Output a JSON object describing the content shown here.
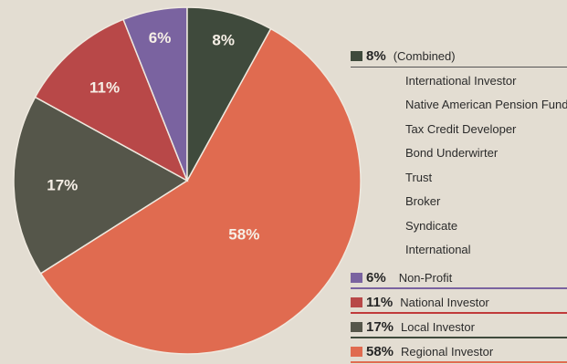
{
  "chart_data": {
    "type": "pie",
    "slices": [
      {
        "label": "Regional Investor",
        "value": 58,
        "display": "58%",
        "color": "#e06b50"
      },
      {
        "label": "Local Investor",
        "value": 17,
        "display": "17%",
        "color": "#55564a"
      },
      {
        "label": "National Investor",
        "value": 11,
        "display": "11%",
        "color": "#b84848"
      },
      {
        "label": "Non-Profit",
        "value": 6,
        "display": "6%",
        "color": "#7a63a0"
      },
      {
        "label": "(Combined)",
        "value": 8,
        "display": "8%",
        "color": "#3f4a3c"
      }
    ]
  },
  "legend": {
    "combined": {
      "pct": "8%",
      "label": "(Combined)",
      "color": "#3f4a3c"
    },
    "combined_items": [
      "International Investor",
      "Native American Pension Fund",
      "Tax Credit Developer",
      "Bond Underwirter",
      "Trust",
      "Broker",
      "Syndicate",
      "International"
    ],
    "entries": [
      {
        "pct": "6%",
        "label": "Non-Profit",
        "color": "#7a63a0",
        "line": "#7a63a0"
      },
      {
        "pct": "11%",
        "label": "National Investor",
        "color": "#b84848",
        "line": "#c03a3a"
      },
      {
        "pct": "17%",
        "label": "Local Investor",
        "color": "#55564a",
        "line": "#3f4a3c"
      },
      {
        "pct": "58%",
        "label": "Regional Investor",
        "color": "#e06b50",
        "line": "#e06b50"
      }
    ]
  }
}
